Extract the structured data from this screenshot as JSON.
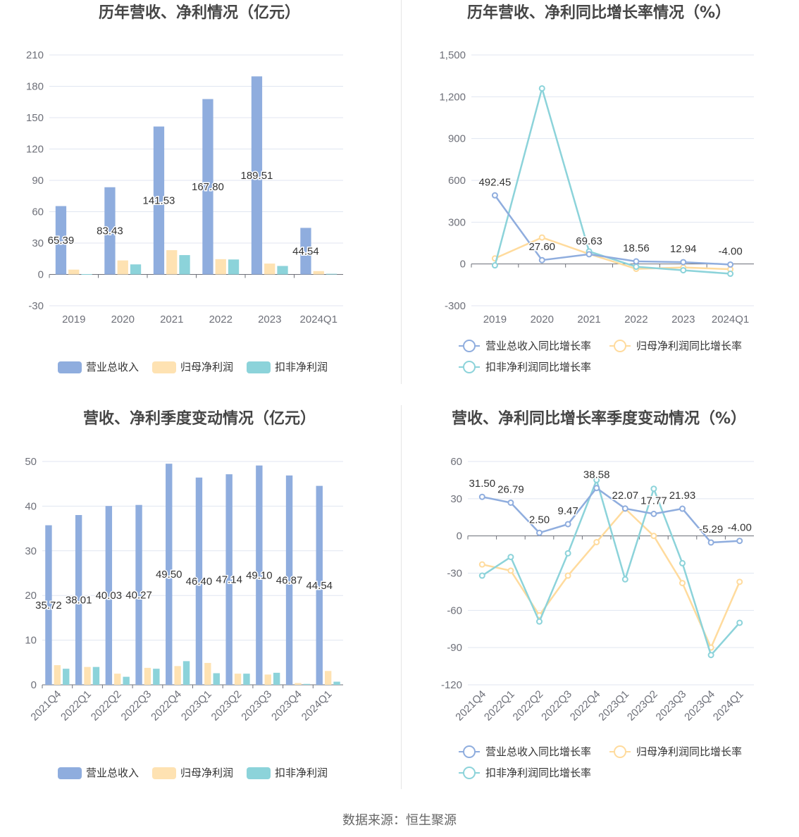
{
  "source_text": "数据来源：恒生聚源",
  "colors": {
    "revenue": "#8fadde",
    "net_profit": "#fee2b2",
    "deducted_profit": "#8cd3da",
    "rev_line": "#8fadde",
    "np_line": "#ffdb9d",
    "dp_line": "#8cd3da"
  },
  "chart_data": [
    {
      "id": "annual_values",
      "type": "bar",
      "title": "历年营收、净利情况（亿元）",
      "categories": [
        "2019",
        "2020",
        "2021",
        "2022",
        "2023",
        "2024Q1"
      ],
      "ylim": [
        -30,
        210
      ],
      "yticks": [
        -30,
        0,
        30,
        60,
        90,
        120,
        150,
        180,
        210
      ],
      "grid": true,
      "legend_position": "bottom",
      "series": [
        {
          "name": "营业总收入",
          "values": [
            65.39,
            83.43,
            141.53,
            167.8,
            189.51,
            44.54
          ],
          "labels": [
            "65.39",
            "83.43",
            "141.53",
            "167.80",
            "189.51",
            "44.54"
          ]
        },
        {
          "name": "归母净利润",
          "values": [
            4.6,
            13.4,
            23.2,
            14.6,
            10.4,
            3.2
          ]
        },
        {
          "name": "扣非净利润",
          "values": [
            0.3,
            9.6,
            18.5,
            14.3,
            8.1,
            0.6
          ]
        }
      ]
    },
    {
      "id": "annual_growth",
      "type": "line",
      "title": "历年营收、净利同比增长率情况（%）",
      "categories": [
        "2019",
        "2020",
        "2021",
        "2022",
        "2023",
        "2024Q1"
      ],
      "ylim": [
        -300,
        1500
      ],
      "yticks": [
        -300,
        0,
        300,
        600,
        900,
        1200,
        1500
      ],
      "ytick_labels": [
        "-300",
        "0",
        "300",
        "600",
        "900",
        "1,200",
        "1,500"
      ],
      "grid": true,
      "legend_position": "bottom",
      "series": [
        {
          "name": "营业总收入同比增长率",
          "values": [
            492.45,
            27.6,
            69.63,
            18.56,
            12.94,
            -4.0
          ],
          "labels": [
            "492.45",
            "27.60",
            "69.63",
            "18.56",
            "12.94",
            "-4.00"
          ]
        },
        {
          "name": "归母净利润同比增长率",
          "values": [
            40,
            190,
            72,
            -35,
            -25,
            -38
          ]
        },
        {
          "name": "扣非净利润同比增长率",
          "values": [
            -10,
            1260,
            90,
            -20,
            -45,
            -70
          ]
        }
      ]
    },
    {
      "id": "quarterly_values",
      "type": "bar",
      "title": "营收、净利季度变动情况（亿元）",
      "categories": [
        "2021Q4",
        "2022Q1",
        "2022Q2",
        "2022Q3",
        "2022Q4",
        "2023Q1",
        "2023Q2",
        "2023Q3",
        "2023Q4",
        "2024Q1"
      ],
      "ylim": [
        0,
        50
      ],
      "yticks": [
        0,
        10,
        20,
        30,
        40,
        50
      ],
      "grid": true,
      "legend_position": "bottom",
      "series": [
        {
          "name": "营业总收入",
          "values": [
            35.72,
            38.01,
            40.03,
            40.27,
            49.5,
            46.4,
            47.14,
            49.1,
            46.87,
            44.54
          ],
          "labels": [
            "35.72",
            "38.01",
            "40.03",
            "40.27",
            "49.50",
            "46.40",
            "47.14",
            "49.10",
            "46.87",
            "44.54"
          ]
        },
        {
          "name": "归母净利润",
          "values": [
            4.4,
            4.0,
            2.5,
            3.8,
            4.2,
            4.9,
            2.5,
            2.3,
            0.4,
            3.1
          ]
        },
        {
          "name": "扣非净利润",
          "values": [
            3.6,
            4.0,
            1.8,
            3.6,
            5.3,
            2.6,
            2.5,
            2.7,
            0.2,
            0.7
          ]
        }
      ]
    },
    {
      "id": "quarterly_growth",
      "type": "line",
      "title": "营收、净利同比增长率季度变动情况（%）",
      "categories": [
        "2021Q4",
        "2022Q1",
        "2022Q2",
        "2022Q3",
        "2022Q4",
        "2023Q1",
        "2023Q2",
        "2023Q3",
        "2023Q4",
        "2024Q1"
      ],
      "ylim": [
        -120,
        60
      ],
      "yticks": [
        -120,
        -90,
        -60,
        -30,
        0,
        30,
        60
      ],
      "grid": true,
      "legend_position": "bottom",
      "series": [
        {
          "name": "营业总收入同比增长率",
          "values": [
            31.5,
            26.79,
            2.5,
            9.47,
            38.58,
            22.07,
            17.77,
            21.93,
            -5.29,
            -4.0
          ],
          "labels": [
            "31.50",
            "26.79",
            "2.50",
            "9.47",
            "38.58",
            "22.07",
            "17.77",
            "21.93",
            "-5.29",
            "-4.00"
          ]
        },
        {
          "name": "归母净利润同比增长率",
          "values": [
            -23,
            -28,
            -64,
            -32,
            -5,
            22,
            0,
            -38,
            -90,
            -37
          ]
        },
        {
          "name": "扣非净利润同比增长率",
          "values": [
            -32,
            -17,
            -69,
            -14,
            45,
            -35,
            38,
            -22,
            -96,
            -70
          ]
        }
      ]
    }
  ]
}
